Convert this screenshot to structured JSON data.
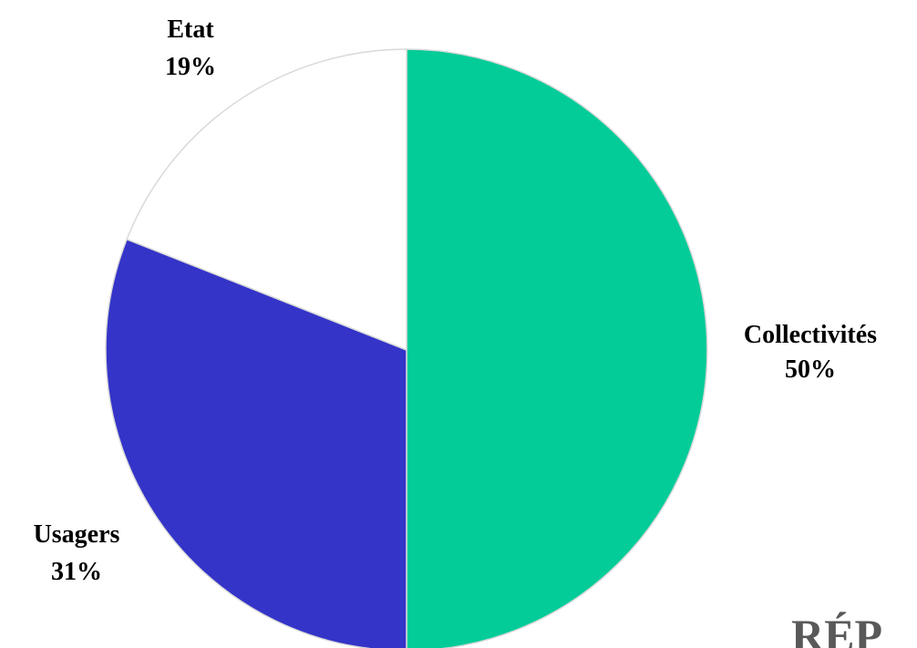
{
  "chart_data": {
    "type": "pie",
    "slices": [
      {
        "label": "Collectivités",
        "percent_label": "50%",
        "value": 50,
        "color": "#03CC99"
      },
      {
        "label": "Usagers",
        "percent_label": "31%",
        "value": 31,
        "color": "#3434C8"
      },
      {
        "label": "Etat",
        "percent_label": "19%",
        "value": 19,
        "color": "#FFFFFF"
      }
    ],
    "start": "12 o'clock",
    "direction": "clockwise",
    "slice_border_color": "#D9D9D9"
  },
  "footer_fragment": "RÉP"
}
